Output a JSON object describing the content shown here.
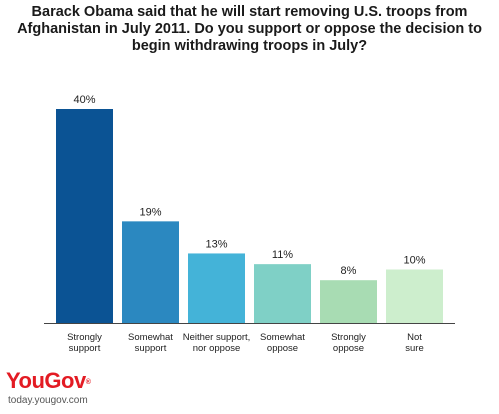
{
  "chart_data": {
    "type": "bar",
    "title": "Barack Obama said that he will start removing U.S. troops from Afghanistan in July 2011. Do you support or oppose the decision to begin withdrawing troops in July?",
    "categories": [
      [
        "Strongly",
        "support"
      ],
      [
        "Somewhat",
        "support"
      ],
      [
        "Neither support,",
        "nor oppose"
      ],
      [
        "Somewhat",
        "oppose"
      ],
      [
        "Strongly",
        "oppose"
      ],
      [
        "Not",
        "sure"
      ]
    ],
    "values": [
      40,
      19,
      13,
      11,
      8,
      10
    ],
    "value_labels": [
      "40%",
      "19%",
      "13%",
      "11%",
      "8%",
      "10%"
    ],
    "colors": [
      "#0b5394",
      "#2b88c0",
      "#44b3d8",
      "#7fd0c6",
      "#a8dcb3",
      "#cdeecd"
    ],
    "ylim": [
      0,
      40
    ],
    "grid": false
  },
  "branding": {
    "logo_you": "You",
    "logo_gov": "Gov",
    "logo_mark": "®",
    "url": "today.yougov.com"
  }
}
